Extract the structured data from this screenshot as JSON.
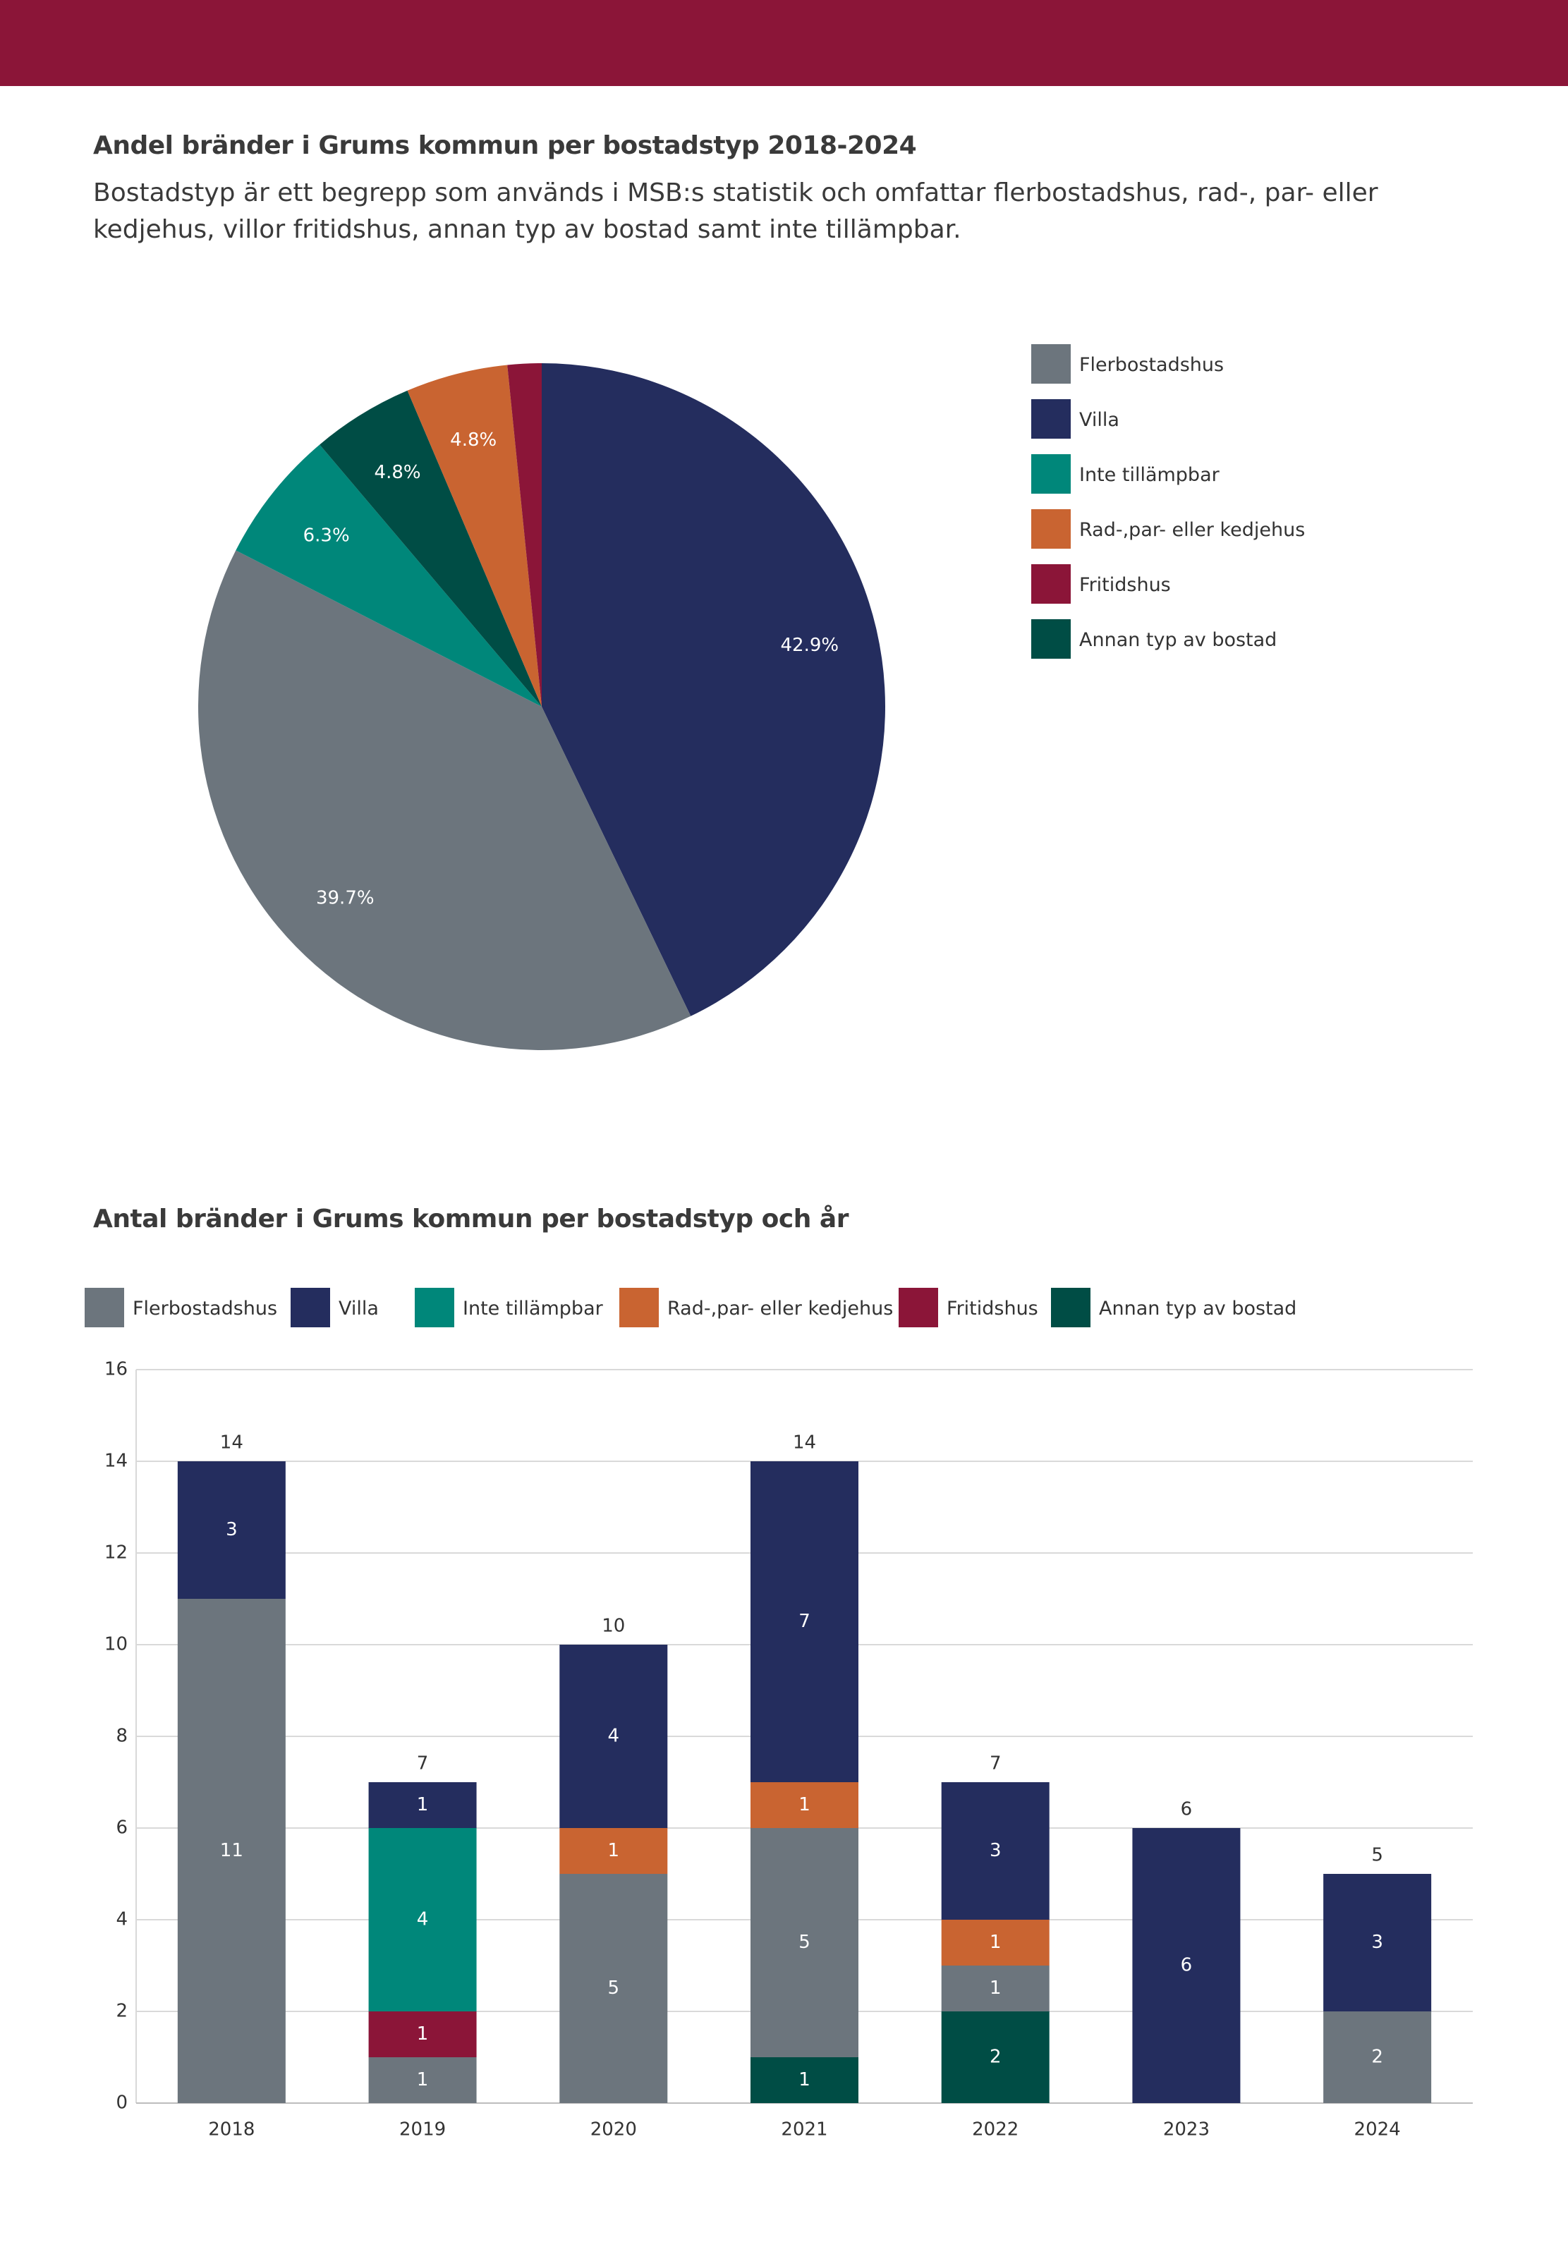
{
  "header": {
    "chart1_title": "Andel bränder i Grums kommun per bostadstyp 2018-2024",
    "chart1_description": "Bostadstyp är ett begrepp som används i MSB:s statistik och omfattar flerbostadshus, rad-, par- eller kedjehus, villor fritidshus, annan typ av bostad samt inte tillämpbar.",
    "chart2_title": "Antal bränder i Grums kommun per bostadstyp och år"
  },
  "colors": {
    "header_bar": "#8b1538",
    "Flerbostadshus": "#6c757d",
    "Villa": "#242d5e",
    "Inte tillämpbar": "#00877a",
    "Rad-,par- eller kedjehus": "#c96431",
    "Fritidshus": "#8b1538",
    "Annan typ av bostad": "#004d45"
  },
  "chart_data": [
    {
      "type": "pie",
      "title": "Andel bränder i Grums kommun per bostadstyp 2018-2024",
      "legend_position": "right",
      "legend": [
        "Flerbostadshus",
        "Villa",
        "Inte tillämpbar",
        "Rad-,par- eller kedjehus",
        "Fritidshus",
        "Annan typ av bostad"
      ],
      "slices": [
        {
          "name": "Villa",
          "value": 42.9,
          "label": "42.9%"
        },
        {
          "name": "Flerbostadshus",
          "value": 39.7,
          "label": "39.7%"
        },
        {
          "name": "Inte tillämpbar",
          "value": 6.3,
          "label": "6.3%"
        },
        {
          "name": "Annan typ av bostad",
          "value": 4.8,
          "label": "4.8%"
        },
        {
          "name": "Rad-,par- eller kedjehus",
          "value": 4.8,
          "label": "4.8%"
        },
        {
          "name": "Fritidshus",
          "value": 1.6,
          "label": ""
        }
      ]
    },
    {
      "type": "bar",
      "stacked": true,
      "title": "Antal bränder i Grums kommun per bostadstyp och år",
      "legend_position": "top",
      "legend": [
        "Flerbostadshus",
        "Villa",
        "Inte tillämpbar",
        "Rad-,par- eller kedjehus",
        "Fritidshus",
        "Annan typ av bostad"
      ],
      "categories": [
        "2018",
        "2019",
        "2020",
        "2021",
        "2022",
        "2023",
        "2024"
      ],
      "ylim": [
        0,
        16
      ],
      "yticks": [
        0,
        2,
        4,
        6,
        8,
        10,
        12,
        14,
        16
      ],
      "grid": true,
      "stack_order": [
        "Annan typ av bostad",
        "Flerbostadshus",
        "Fritidshus",
        "Inte tillämpbar",
        "Rad-,par- eller kedjehus",
        "Villa"
      ],
      "series": [
        {
          "name": "Flerbostadshus",
          "values": [
            11,
            1,
            5,
            5,
            1,
            0,
            2
          ]
        },
        {
          "name": "Villa",
          "values": [
            3,
            1,
            4,
            7,
            3,
            6,
            3
          ]
        },
        {
          "name": "Inte tillämpbar",
          "values": [
            0,
            4,
            0,
            0,
            0,
            0,
            0
          ]
        },
        {
          "name": "Rad-,par- eller kedjehus",
          "values": [
            0,
            0,
            1,
            1,
            1,
            0,
            0
          ]
        },
        {
          "name": "Fritidshus",
          "values": [
            0,
            1,
            0,
            0,
            0,
            0,
            0
          ]
        },
        {
          "name": "Annan typ av bostad",
          "values": [
            0,
            0,
            0,
            1,
            2,
            0,
            0
          ]
        }
      ],
      "totals": [
        14,
        7,
        10,
        14,
        7,
        6,
        5
      ]
    }
  ]
}
